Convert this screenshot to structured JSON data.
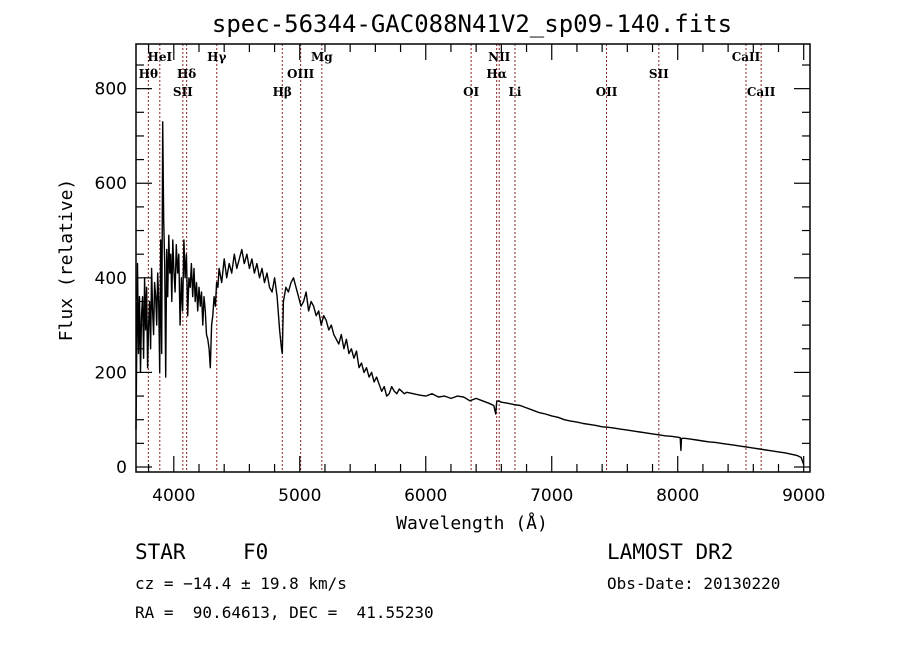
{
  "chart_data": {
    "type": "line",
    "title": "spec-56344-GAC088N41V2_sp09-140.fits",
    "xlabel": "Wavelength (Å)",
    "ylabel": "Flux (relative)",
    "xlim": [
      3700,
      9050
    ],
    "ylim": [
      0,
      905
    ],
    "xticks": [
      4000,
      5000,
      6000,
      7000,
      8000,
      9000
    ],
    "yticks": [
      0,
      200,
      400,
      600,
      800
    ],
    "xtick_labels": [
      "4000",
      "5000",
      "6000",
      "7000",
      "8000",
      "9000"
    ],
    "ytick_labels": [
      "0",
      "200",
      "400",
      "600",
      "800"
    ],
    "grid": false,
    "line_color": "#000000",
    "marker_line_color": "#8b2020",
    "spectral_lines": [
      {
        "name": "Hθ",
        "wavelength": 3798,
        "row": 2
      },
      {
        "name": "HeI",
        "wavelength": 3889,
        "row": 1
      },
      {
        "name": "SII",
        "wavelength": 4072,
        "row": 3
      },
      {
        "name": "Hδ",
        "wavelength": 4102,
        "row": 2
      },
      {
        "name": "Hγ",
        "wavelength": 4341,
        "row": 1
      },
      {
        "name": "Hβ",
        "wavelength": 4861,
        "row": 3
      },
      {
        "name": "OIII",
        "wavelength": 5007,
        "row": 2
      },
      {
        "name": "Mg",
        "wavelength": 5175,
        "row": 1
      },
      {
        "name": "OI",
        "wavelength": 6360,
        "row": 3
      },
      {
        "name": "Hα",
        "wavelength": 6563,
        "row": 2
      },
      {
        "name": "NII",
        "wavelength": 6583,
        "row": 1
      },
      {
        "name": "Li",
        "wavelength": 6708,
        "row": 3
      },
      {
        "name": "OII",
        "wavelength": 7435,
        "row": 3
      },
      {
        "name": "SII",
        "wavelength": 7850,
        "row": 2
      },
      {
        "name": "CaII",
        "wavelength": 8542,
        "row": 1
      },
      {
        "name": "CaII",
        "wavelength": 8662,
        "row": 3
      }
    ],
    "series": [
      {
        "name": "flux",
        "x": [
          3700,
          3712,
          3720,
          3728,
          3736,
          3744,
          3752,
          3760,
          3768,
          3776,
          3784,
          3792,
          3800,
          3808,
          3816,
          3824,
          3832,
          3840,
          3848,
          3856,
          3864,
          3872,
          3880,
          3888,
          3896,
          3904,
          3912,
          3920,
          3928,
          3936,
          3944,
          3952,
          3960,
          3968,
          3976,
          3984,
          3992,
          4000,
          4010,
          4020,
          4030,
          4040,
          4050,
          4060,
          4070,
          4080,
          4090,
          4100,
          4110,
          4120,
          4130,
          4140,
          4150,
          4160,
          4170,
          4180,
          4190,
          4200,
          4210,
          4220,
          4230,
          4240,
          4250,
          4260,
          4270,
          4280,
          4290,
          4300,
          4310,
          4320,
          4330,
          4340,
          4350,
          4360,
          4380,
          4400,
          4420,
          4440,
          4460,
          4480,
          4500,
          4520,
          4540,
          4560,
          4580,
          4600,
          4620,
          4640,
          4660,
          4680,
          4700,
          4720,
          4740,
          4760,
          4780,
          4800,
          4820,
          4840,
          4855,
          4861,
          4870,
          4890,
          4910,
          4930,
          4950,
          4970,
          4990,
          5010,
          5030,
          5050,
          5070,
          5090,
          5110,
          5130,
          5150,
          5170,
          5190,
          5210,
          5230,
          5250,
          5270,
          5290,
          5310,
          5330,
          5350,
          5370,
          5390,
          5410,
          5430,
          5450,
          5470,
          5490,
          5510,
          5530,
          5550,
          5570,
          5590,
          5610,
          5630,
          5650,
          5670,
          5690,
          5710,
          5730,
          5750,
          5770,
          5790,
          5810,
          5830,
          5850,
          5900,
          5950,
          6000,
          6050,
          6100,
          6150,
          6200,
          6250,
          6300,
          6350,
          6400,
          6450,
          6500,
          6540,
          6555,
          6563,
          6575,
          6600,
          6650,
          6700,
          6750,
          6800,
          6850,
          6900,
          6950,
          7000,
          7050,
          7100,
          7150,
          7200,
          7250,
          7300,
          7350,
          7400,
          7450,
          7500,
          7550,
          7600,
          7650,
          7700,
          7750,
          7800,
          7850,
          7900,
          7950,
          8000,
          8020,
          8025,
          8030,
          8050,
          8100,
          8150,
          8200,
          8250,
          8300,
          8350,
          8400,
          8450,
          8500,
          8550,
          8600,
          8650,
          8700,
          8750,
          8800,
          8850,
          8900,
          8950,
          8980,
          9000
        ],
        "y": [
          80,
          430,
          240,
          360,
          200,
          320,
          360,
          230,
          400,
          290,
          380,
          210,
          300,
          350,
          250,
          420,
          330,
          280,
          390,
          360,
          300,
          410,
          350,
          200,
          480,
          240,
          730,
          520,
          430,
          190,
          460,
          360,
          490,
          410,
          450,
          350,
          480,
          420,
          370,
          470,
          410,
          450,
          300,
          400,
          330,
          480,
          400,
          450,
          320,
          400,
          380,
          430,
          360,
          420,
          350,
          390,
          330,
          380,
          340,
          370,
          300,
          360,
          330,
          280,
          270,
          250,
          210,
          300,
          320,
          360,
          340,
          390,
          380,
          420,
          390,
          440,
          400,
          430,
          410,
          450,
          420,
          440,
          460,
          430,
          450,
          420,
          440,
          410,
          430,
          400,
          420,
          390,
          410,
          380,
          370,
          400,
          360,
          290,
          250,
          240,
          350,
          380,
          370,
          390,
          400,
          380,
          360,
          340,
          350,
          370,
          330,
          350,
          340,
          320,
          330,
          300,
          320,
          310,
          290,
          300,
          280,
          270,
          260,
          280,
          250,
          270,
          240,
          250,
          230,
          245,
          210,
          220,
          200,
          210,
          190,
          200,
          180,
          190,
          175,
          160,
          170,
          150,
          155,
          170,
          160,
          155,
          165,
          160,
          155,
          158,
          155,
          152,
          150,
          155,
          148,
          150,
          145,
          150,
          148,
          140,
          145,
          140,
          135,
          130,
          112,
          138,
          140,
          137,
          135,
          132,
          130,
          125,
          120,
          115,
          112,
          108,
          105,
          100,
          97,
          95,
          92,
          90,
          88,
          85,
          84,
          82,
          80,
          78,
          76,
          74,
          72,
          70,
          68,
          66,
          65,
          63,
          62,
          35,
          60,
          61,
          59,
          57,
          55,
          53,
          52,
          50,
          48,
          46,
          44,
          42,
          40,
          38,
          36,
          34,
          32,
          30,
          27,
          24,
          20,
          5
        ]
      }
    ]
  },
  "info": {
    "object_class": "STAR",
    "subclass": "F0",
    "redshift": "cz = −14.4 ± 19.8 km/s",
    "coordinates": "RA =  90.64613, DEC =  41.55230",
    "survey": "LAMOST DR2",
    "obs_date": "Obs-Date: 20130220"
  }
}
